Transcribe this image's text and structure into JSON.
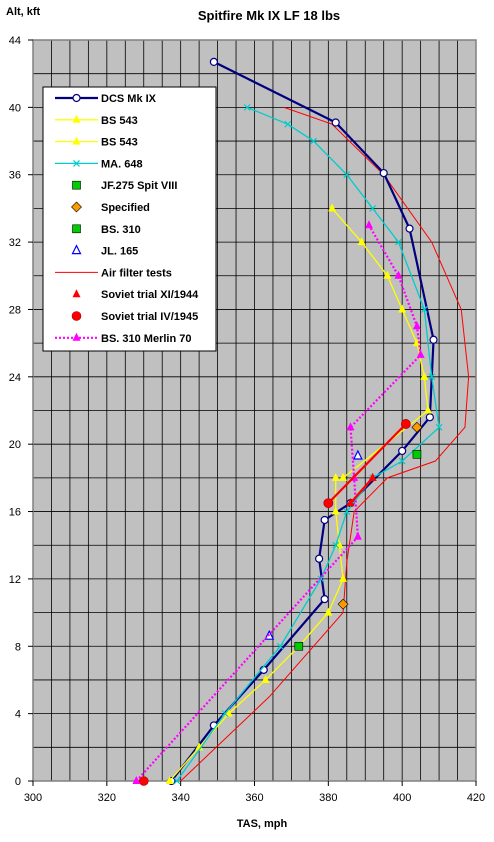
{
  "chart_data": {
    "type": "line",
    "title": "Spitfire Mk IX LF 18 lbs",
    "xlabel": "TAS, mph",
    "ylabel": "Alt, kft",
    "xlim": [
      300,
      420
    ],
    "ylim": [
      0,
      44
    ],
    "x_ticks": [
      "300",
      "320",
      "340",
      "360",
      "380",
      "400",
      "420"
    ],
    "y_ticks": [
      "0",
      "4",
      "8",
      "12",
      "16",
      "20",
      "24",
      "28",
      "32",
      "36",
      "40",
      "44"
    ],
    "grid": true,
    "legend_position": "top-left",
    "colors": {
      "plot_bg": "#c0c0c0",
      "grid": "#000000",
      "frame": "#808080"
    },
    "series": [
      {
        "name": "DCS Mk IX",
        "color": "#000080",
        "marker": "circle-open",
        "line": "solid-thick",
        "points": [
          [
            337.5,
            0
          ],
          [
            349,
            3.3
          ],
          [
            362.5,
            6.6
          ],
          [
            379,
            10.8
          ],
          [
            377.5,
            13.2
          ],
          [
            379,
            15.5
          ],
          [
            386,
            16.5
          ],
          [
            400,
            19.6
          ],
          [
            407.5,
            21.6
          ],
          [
            408.5,
            26.2
          ],
          [
            402,
            32.8
          ],
          [
            395,
            36.1
          ],
          [
            382,
            39.1
          ],
          [
            349,
            42.7
          ]
        ]
      },
      {
        "name": "BS 543",
        "color": "#ffff00",
        "marker": "triangle",
        "line": "solid",
        "points": [
          [
            337,
            0
          ],
          [
            345,
            2
          ],
          [
            353,
            4
          ],
          [
            363,
            6
          ],
          [
            372,
            8
          ],
          [
            380,
            10
          ],
          [
            384,
            12
          ],
          [
            383,
            14
          ],
          [
            382,
            16
          ],
          [
            382,
            18
          ]
        ]
      },
      {
        "name": "BS 543",
        "color": "#ffff00",
        "marker": "triangle",
        "line": "solid",
        "points": [
          [
            384,
            18
          ],
          [
            407,
            22
          ],
          [
            406,
            24
          ],
          [
            404,
            26
          ],
          [
            400,
            28
          ],
          [
            396,
            30
          ],
          [
            389,
            32
          ],
          [
            381,
            34
          ]
        ]
      },
      {
        "name": "MA. 648",
        "color": "#00cccc",
        "marker": "cross",
        "line": "solid",
        "points": [
          [
            339,
            0
          ],
          [
            352,
            4
          ],
          [
            367,
            8
          ],
          [
            378,
            12
          ],
          [
            382,
            14
          ],
          [
            385,
            16
          ],
          [
            392,
            18
          ],
          [
            400,
            19
          ],
          [
            410,
            21
          ],
          [
            408,
            24
          ],
          [
            406,
            28
          ],
          [
            399,
            32
          ],
          [
            392,
            34
          ],
          [
            385,
            36
          ],
          [
            376,
            38
          ],
          [
            369,
            39
          ],
          [
            358,
            40
          ]
        ]
      },
      {
        "name": "JF.275 Spit VIII",
        "color": "#00cc00",
        "marker": "square",
        "points": [
          [
            372,
            8
          ],
          [
            404,
            19.4
          ]
        ]
      },
      {
        "name": "Specified",
        "color": "#ff9900",
        "marker": "diamond",
        "points": [
          [
            384,
            10.5
          ],
          [
            404,
            21
          ]
        ]
      },
      {
        "name": "BS. 310",
        "color": "#00cc00",
        "marker": "square",
        "points": []
      },
      {
        "name": "JL. 165",
        "color": "#0000ff",
        "marker": "triangle-open",
        "points": [
          [
            364,
            8.6
          ],
          [
            388,
            19.3
          ]
        ]
      },
      {
        "name": "Air filter tests",
        "color": "#ff0000",
        "marker": "none",
        "line": "solid-thin",
        "points": [
          [
            340,
            0
          ],
          [
            364,
            5
          ],
          [
            384,
            10
          ],
          [
            385,
            13
          ],
          [
            387,
            16
          ],
          [
            396,
            18
          ],
          [
            409,
            19
          ],
          [
            417,
            21
          ],
          [
            418,
            24
          ],
          [
            416,
            28
          ],
          [
            408,
            32
          ],
          [
            395,
            36
          ],
          [
            381,
            39
          ],
          [
            368,
            40
          ]
        ]
      },
      {
        "name": "Soviet trial XI/1944",
        "color": "#ff0000",
        "marker": "triangle",
        "points": [
          [
            330,
            0
          ],
          [
            386,
            16.5
          ],
          [
            392,
            18
          ]
        ]
      },
      {
        "name": "Soviet trial IV/1945",
        "color": "#ff0000",
        "marker": "circle",
        "points": [
          [
            330,
            0
          ],
          [
            380,
            16.5
          ],
          [
            401,
            21.2
          ]
        ]
      },
      {
        "name": "BS. 310 Merlin 70",
        "color": "#ff00ff",
        "marker": "triangle",
        "line": "dotted",
        "points": [
          [
            328,
            0
          ],
          [
            388,
            14.5
          ],
          [
            387,
            18
          ],
          [
            386,
            21
          ],
          [
            405,
            25.3
          ],
          [
            404,
            27
          ],
          [
            399,
            30
          ],
          [
            391,
            33
          ]
        ]
      }
    ]
  }
}
